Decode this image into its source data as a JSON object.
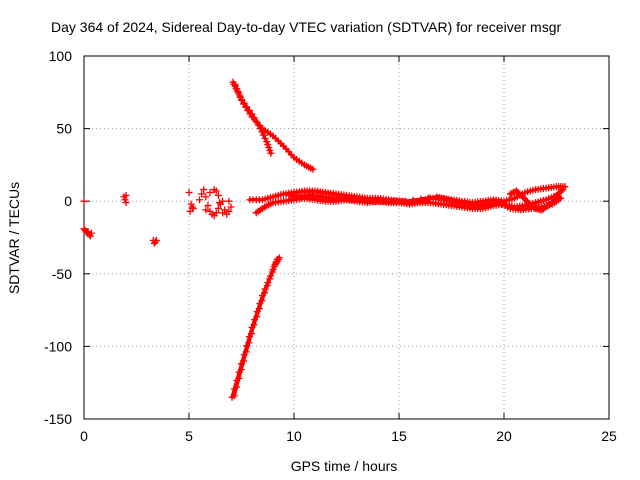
{
  "chart_data": {
    "type": "scatter",
    "title": "Day 364 of 2024, Sidereal Day-to-day VTEC variation (SDTVAR) for receiver msgr",
    "xlabel": "GPS time / hours",
    "ylabel": "SDTVAR / TECUs",
    "xlim": [
      0,
      25
    ],
    "ylim": [
      -150,
      100
    ],
    "xticks": [
      0,
      5,
      10,
      15,
      20,
      25
    ],
    "yticks": [
      100,
      50,
      0,
      -50,
      -100,
      -150
    ],
    "grid": true,
    "marker": "plus",
    "color": "#ff0000",
    "series": [
      {
        "name": "early-scatter",
        "points": [
          [
            0.0,
            -19
          ],
          [
            0.05,
            -20
          ],
          [
            0.1,
            -21
          ],
          [
            0.15,
            -22
          ],
          [
            0.2,
            -21
          ],
          [
            0.25,
            -23
          ],
          [
            0.3,
            -24
          ],
          [
            0.35,
            -22
          ],
          [
            0.0,
            0
          ],
          [
            1.9,
            3
          ],
          [
            1.95,
            1
          ],
          [
            2.0,
            -1
          ],
          [
            2.0,
            4
          ],
          [
            3.3,
            -27
          ],
          [
            3.35,
            -29
          ],
          [
            3.4,
            -28
          ],
          [
            3.45,
            -27
          ]
        ]
      },
      {
        "name": "cluster-5-7",
        "points": [
          [
            5.0,
            6
          ],
          [
            5.1,
            -2
          ],
          [
            5.2,
            -5
          ],
          [
            5.05,
            -7
          ],
          [
            5.15,
            -4
          ],
          [
            5.5,
            1
          ],
          [
            5.6,
            5
          ],
          [
            5.7,
            8
          ],
          [
            5.8,
            3
          ],
          [
            5.9,
            -3
          ],
          [
            6.0,
            -7
          ],
          [
            6.1,
            -9
          ],
          [
            6.2,
            -10
          ],
          [
            6.3,
            -8
          ],
          [
            6.4,
            -5
          ],
          [
            6.5,
            -2
          ],
          [
            6.6,
            0
          ],
          [
            6.7,
            -6
          ],
          [
            6.8,
            -9
          ],
          [
            6.9,
            -7
          ],
          [
            7.0,
            -4
          ],
          [
            6.0,
            6
          ],
          [
            6.2,
            8
          ],
          [
            6.4,
            4
          ],
          [
            5.8,
            -6
          ],
          [
            6.6,
            -8
          ],
          [
            6.3,
            7
          ],
          [
            6.45,
            -1
          ],
          [
            6.9,
            0
          ]
        ]
      },
      {
        "name": "upper-arc",
        "line": [
          [
            7.1,
            82
          ],
          [
            7.3,
            76
          ],
          [
            7.6,
            67
          ],
          [
            8.0,
            58
          ],
          [
            8.5,
            50
          ],
          [
            9.0,
            45
          ],
          [
            9.5,
            38
          ],
          [
            10.0,
            30
          ],
          [
            10.5,
            25
          ],
          [
            10.9,
            22
          ]
        ]
      },
      {
        "name": "upper-arc-b",
        "line": [
          [
            7.2,
            80
          ],
          [
            7.5,
            70
          ],
          [
            8.0,
            60
          ],
          [
            8.4,
            50
          ],
          [
            8.7,
            41
          ],
          [
            8.9,
            33
          ]
        ]
      },
      {
        "name": "lower-arc",
        "line": [
          [
            7.05,
            -135
          ],
          [
            7.5,
            -112
          ],
          [
            8.0,
            -87
          ],
          [
            8.5,
            -65
          ],
          [
            9.0,
            -47
          ],
          [
            9.2,
            -40
          ]
        ]
      },
      {
        "name": "lower-arc-b",
        "line": [
          [
            7.15,
            -134
          ],
          [
            7.6,
            -110
          ],
          [
            8.1,
            -85
          ],
          [
            8.6,
            -63
          ],
          [
            9.1,
            -44
          ],
          [
            9.3,
            -39
          ]
        ]
      },
      {
        "name": "main-band-a",
        "line": [
          [
            7.9,
            1
          ],
          [
            8.5,
            1
          ],
          [
            9.0,
            3
          ],
          [
            9.5,
            5
          ],
          [
            10.0,
            6
          ],
          [
            10.5,
            7
          ],
          [
            11.0,
            7
          ],
          [
            11.5,
            6
          ],
          [
            12.0,
            5
          ],
          [
            12.5,
            4
          ],
          [
            13.0,
            3
          ],
          [
            13.5,
            2
          ],
          [
            14.0,
            2
          ],
          [
            14.5,
            1
          ],
          [
            15.0,
            0
          ],
          [
            15.5,
            -1
          ],
          [
            16.0,
            0
          ],
          [
            16.5,
            2
          ],
          [
            17.0,
            2
          ],
          [
            17.5,
            1
          ],
          [
            18.0,
            0
          ],
          [
            18.5,
            -1
          ],
          [
            19.0,
            0
          ],
          [
            19.5,
            1
          ],
          [
            20.0,
            0
          ],
          [
            20.5,
            2
          ],
          [
            21.0,
            6
          ],
          [
            21.5,
            8
          ],
          [
            22.0,
            9
          ],
          [
            22.5,
            10
          ],
          [
            22.9,
            10
          ]
        ]
      },
      {
        "name": "main-band-b",
        "line": [
          [
            8.2,
            -8
          ],
          [
            8.6,
            -4
          ],
          [
            9.0,
            -1
          ],
          [
            9.5,
            0
          ],
          [
            10.0,
            1
          ],
          [
            10.5,
            2
          ],
          [
            11.0,
            1
          ],
          [
            11.5,
            0
          ],
          [
            12.0,
            0
          ],
          [
            12.5,
            1
          ],
          [
            13.0,
            0
          ],
          [
            13.5,
            -1
          ],
          [
            14.0,
            0
          ],
          [
            14.5,
            -1
          ],
          [
            15.0,
            -1
          ],
          [
            15.5,
            -2
          ],
          [
            16.0,
            -1
          ],
          [
            16.5,
            -1
          ],
          [
            17.0,
            -2
          ],
          [
            17.5,
            -3
          ],
          [
            18.0,
            -4
          ],
          [
            18.5,
            -5
          ],
          [
            19.0,
            -5
          ],
          [
            19.5,
            -3
          ],
          [
            20.0,
            -2
          ],
          [
            20.5,
            -4
          ],
          [
            21.0,
            -3
          ],
          [
            21.5,
            -1
          ],
          [
            22.0,
            1
          ],
          [
            22.5,
            4
          ],
          [
            22.8,
            8
          ]
        ]
      },
      {
        "name": "main-band-c",
        "line": [
          [
            9.8,
            4
          ],
          [
            10.3,
            3
          ],
          [
            10.8,
            4
          ],
          [
            11.3,
            3
          ],
          [
            11.8,
            2
          ],
          [
            12.3,
            2
          ],
          [
            12.8,
            1
          ],
          [
            13.3,
            1
          ],
          [
            13.8,
            0
          ],
          [
            14.3,
            0
          ],
          [
            14.8,
            0
          ],
          [
            15.3,
            0
          ],
          [
            16.8,
            3
          ],
          [
            17.3,
            1
          ],
          [
            17.8,
            -1
          ],
          [
            18.3,
            -2
          ],
          [
            18.8,
            -3
          ],
          [
            19.3,
            -2
          ],
          [
            19.8,
            -1
          ],
          [
            20.3,
            -5
          ],
          [
            20.8,
            -6
          ],
          [
            21.3,
            -5
          ],
          [
            21.8,
            -4
          ],
          [
            22.3,
            -2
          ],
          [
            22.7,
            2
          ]
        ]
      },
      {
        "name": "tail-loop",
        "line": [
          [
            20.3,
            5
          ],
          [
            20.6,
            7
          ],
          [
            20.9,
            3
          ],
          [
            21.2,
            -2
          ],
          [
            21.5,
            -5
          ],
          [
            21.8,
            -6
          ],
          [
            22.1,
            -3
          ],
          [
            22.4,
            0
          ],
          [
            22.6,
            3
          ]
        ]
      }
    ]
  }
}
